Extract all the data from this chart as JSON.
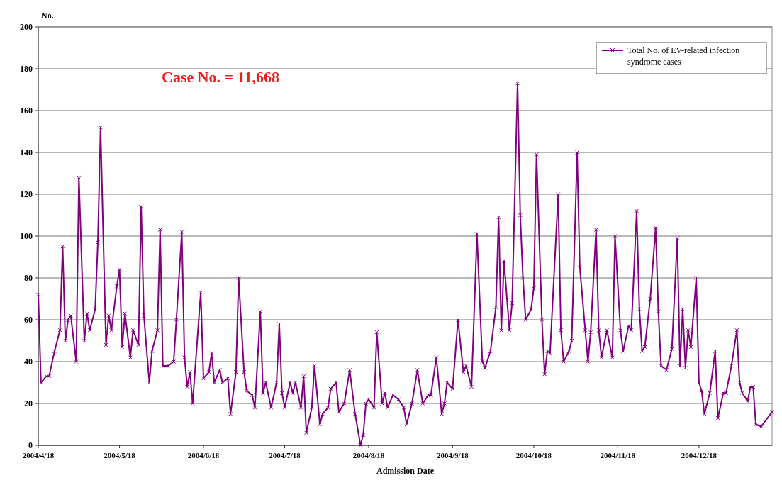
{
  "chart_data": {
    "type": "line",
    "ylabel": "No.",
    "xlabel": "Admission Date",
    "annotations": [
      "Case No. = 11,668"
    ],
    "xlim": [
      "2004-04-18",
      "2005-01-14"
    ],
    "xticks": [
      {
        "value": "2004-04-18",
        "label": "2004/4/18"
      },
      {
        "value": "2004-05-18",
        "label": "2004/5/18"
      },
      {
        "value": "2004-06-18",
        "label": "2004/6/18"
      },
      {
        "value": "2004-07-18",
        "label": "2004/7/18"
      },
      {
        "value": "2004-08-18",
        "label": "2004/8/18"
      },
      {
        "value": "2004-09-18",
        "label": "2004/9/18"
      },
      {
        "value": "2004-10-18",
        "label": "2004/10/18"
      },
      {
        "value": "2004-11-18",
        "label": "2004/11/18"
      },
      {
        "value": "2004-12-18",
        "label": "2004/12/18"
      }
    ],
    "ylim": [
      0,
      200
    ],
    "yticks": [
      0,
      20,
      40,
      60,
      80,
      100,
      120,
      140,
      160,
      180,
      200
    ],
    "grid": "y",
    "legend": "top right",
    "marker": "cross",
    "line_style": "solid",
    "x": [
      "2004-04-18",
      "2004-04-19",
      "2004-04-21",
      "2004-04-22",
      "2004-04-24",
      "2004-04-26",
      "2004-04-27",
      "2004-04-28",
      "2004-04-29",
      "2004-04-30",
      "2004-05-02",
      "2004-05-03",
      "2004-05-05",
      "2004-05-06",
      "2004-05-07",
      "2004-05-09",
      "2004-05-10",
      "2004-05-11",
      "2004-05-13",
      "2004-05-14",
      "2004-05-15",
      "2004-05-17",
      "2004-05-18",
      "2004-05-19",
      "2004-05-20",
      "2004-05-22",
      "2004-05-23",
      "2004-05-25",
      "2004-05-26",
      "2004-05-27",
      "2004-05-29",
      "2004-05-30",
      "2004-06-01",
      "2004-06-02",
      "2004-06-03",
      "2004-06-05",
      "2004-06-07",
      "2004-06-08",
      "2004-06-10",
      "2004-06-11",
      "2004-06-12",
      "2004-06-13",
      "2004-06-14",
      "2004-06-17",
      "2004-06-18",
      "2004-06-20",
      "2004-06-21",
      "2004-06-22",
      "2004-06-24",
      "2004-06-25",
      "2004-06-27",
      "2004-06-28",
      "2004-06-30",
      "2004-07-01",
      "2004-07-03",
      "2004-07-04",
      "2004-07-06",
      "2004-07-07",
      "2004-07-09",
      "2004-07-10",
      "2004-07-11",
      "2004-07-13",
      "2004-07-15",
      "2004-07-16",
      "2004-07-17",
      "2004-07-18",
      "2004-07-20",
      "2004-07-21",
      "2004-07-22",
      "2004-07-24",
      "2004-07-25",
      "2004-07-26",
      "2004-07-28",
      "2004-07-29",
      "2004-07-31",
      "2004-08-01",
      "2004-08-03",
      "2004-08-04",
      "2004-08-06",
      "2004-08-07",
      "2004-08-09",
      "2004-08-11",
      "2004-08-13",
      "2004-08-15",
      "2004-08-16",
      "2004-08-17",
      "2004-08-18",
      "2004-08-20",
      "2004-08-21",
      "2004-08-23",
      "2004-08-24",
      "2004-08-25",
      "2004-08-27",
      "2004-08-29",
      "2004-08-31",
      "2004-09-01",
      "2004-09-03",
      "2004-09-05",
      "2004-09-07",
      "2004-09-09",
      "2004-09-10",
      "2004-09-12",
      "2004-09-14",
      "2004-09-15",
      "2004-09-16",
      "2004-09-18",
      "2004-09-20",
      "2004-09-22",
      "2004-09-23",
      "2004-09-25",
      "2004-09-27",
      "2004-09-29",
      "2004-09-30",
      "2004-10-02",
      "2004-10-04",
      "2004-10-05",
      "2004-10-06",
      "2004-10-07",
      "2004-10-09",
      "2004-10-10",
      "2004-10-12",
      "2004-10-13",
      "2004-10-14",
      "2004-10-15",
      "2004-10-17",
      "2004-10-18",
      "2004-10-19",
      "2004-10-21",
      "2004-10-22",
      "2004-10-23",
      "2004-10-24",
      "2004-10-27",
      "2004-10-28",
      "2004-10-29",
      "2004-10-31",
      "2004-11-01",
      "2004-11-03",
      "2004-11-04",
      "2004-11-06",
      "2004-11-07",
      "2004-11-08",
      "2004-11-10",
      "2004-11-11",
      "2004-11-12",
      "2004-11-14",
      "2004-11-16",
      "2004-11-17",
      "2004-11-19",
      "2004-11-20",
      "2004-11-22",
      "2004-11-23",
      "2004-11-25",
      "2004-11-26",
      "2004-11-27",
      "2004-11-28",
      "2004-11-30",
      "2004-12-02",
      "2004-12-03",
      "2004-12-04",
      "2004-12-06",
      "2004-12-08",
      "2004-12-10",
      "2004-12-11",
      "2004-12-12",
      "2004-12-13",
      "2004-12-14",
      "2004-12-15",
      "2004-12-17",
      "2004-12-18",
      "2004-12-19",
      "2004-12-20",
      "2004-12-22",
      "2004-12-24",
      "2004-12-25",
      "2004-12-27",
      "2004-12-28",
      "2004-12-30",
      "2005-01-01",
      "2005-01-02",
      "2005-01-03",
      "2005-01-05",
      "2005-01-06",
      "2005-01-07",
      "2005-01-08",
      "2005-01-10",
      "2005-01-14"
    ],
    "series": [
      {
        "name": "Total No. of EV-related infection syndrome cases",
        "color": "#800080",
        "values": [
          72,
          30,
          33,
          33,
          45,
          55,
          95,
          50,
          60,
          62,
          40,
          128,
          50,
          63,
          55,
          65,
          97,
          152,
          48,
          62,
          55,
          76,
          84,
          47,
          63,
          42,
          55,
          48,
          114,
          62,
          30,
          45,
          55,
          103,
          38,
          38,
          40,
          60,
          102,
          42,
          28,
          35,
          20,
          73,
          32,
          35,
          44,
          30,
          36,
          30,
          32,
          15,
          35,
          80,
          35,
          26,
          24,
          18,
          64,
          25,
          30,
          18,
          30,
          58,
          25,
          18,
          30,
          25,
          30,
          18,
          33,
          6,
          18,
          38,
          10,
          15,
          18,
          27,
          30,
          16,
          20,
          36,
          15,
          0,
          5,
          20,
          22,
          18,
          54,
          20,
          25,
          18,
          24,
          22,
          18,
          10,
          20,
          36,
          20,
          24,
          24,
          42,
          15,
          20,
          30,
          27,
          60,
          35,
          38,
          28,
          101,
          40,
          37,
          45,
          66,
          109,
          55,
          88,
          55,
          68,
          173,
          110,
          80,
          60,
          65,
          75,
          139,
          60,
          34,
          45,
          44,
          120,
          55,
          40,
          45,
          50,
          140,
          85,
          55,
          40,
          54,
          103,
          55,
          42,
          55,
          42,
          100,
          55,
          45,
          57,
          55,
          112,
          65,
          45,
          47,
          70,
          104,
          64,
          38,
          36,
          46,
          99,
          38,
          65,
          37,
          55,
          47,
          80,
          30,
          26,
          15,
          25,
          45,
          13,
          25,
          25,
          38,
          55,
          30,
          25,
          21,
          28,
          28,
          10,
          9,
          16
        ]
      }
    ]
  }
}
